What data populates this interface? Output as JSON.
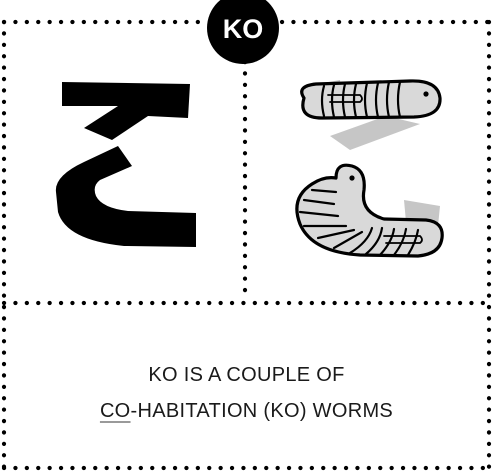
{
  "badge": {
    "label": "KO"
  },
  "kana": {
    "character": "こ"
  },
  "illustration": {
    "icon": "two-worms"
  },
  "caption": {
    "line1": "KO IS A COUPLE OF",
    "line2_highlight": "CO",
    "line2_rest": "-HABITATION (KO) WORMS"
  },
  "colors": {
    "ink": "#000000",
    "worm_fill": "#dadada",
    "shadow": "#c4c4c4",
    "underline": "#9a9a9a"
  }
}
